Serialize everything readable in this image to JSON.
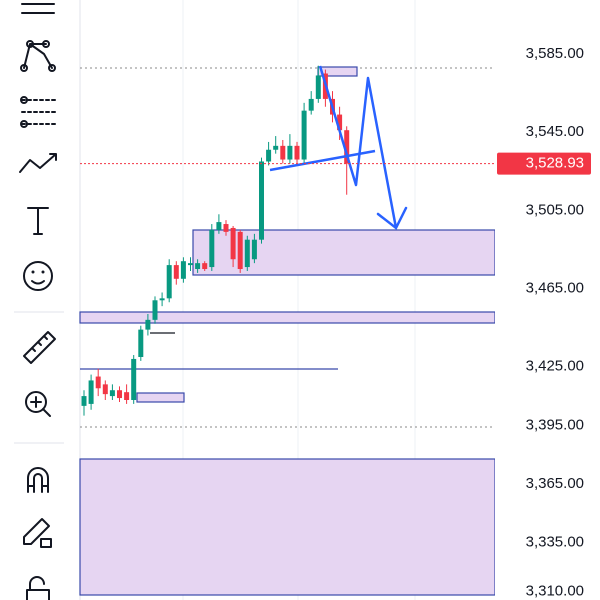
{
  "chart_data": {
    "type": "candlestick",
    "open": [
      3405,
      3406,
      3420,
      3416,
      3410,
      3413,
      3412,
      3408,
      3430,
      3444,
      3449,
      3459,
      3460,
      3477,
      3470,
      3477,
      3475,
      3478,
      3476,
      3495,
      3498,
      3496,
      3494,
      3476,
      3480,
      3490,
      3530,
      3536,
      3538,
      3531,
      3538,
      3531,
      3556,
      3562,
      3575,
      3562,
      3554,
      3546
    ],
    "high": [
      3413,
      3421,
      3424,
      3418,
      3416,
      3415,
      3416,
      3431,
      3446,
      3452,
      3461,
      3463,
      3480,
      3479,
      3481,
      3481,
      3480,
      3479,
      3498,
      3503,
      3500,
      3497,
      3495,
      3492,
      3493,
      3532,
      3540,
      3543,
      3541,
      3544,
      3540,
      3560,
      3566,
      3579,
      3577,
      3566,
      3558,
      3548
    ],
    "low": [
      3400,
      3403,
      3410,
      3408,
      3408,
      3407,
      3406,
      3406,
      3428,
      3441,
      3447,
      3456,
      3458,
      3467,
      3468,
      3474,
      3473,
      3474,
      3474,
      3493,
      3492,
      3476,
      3473,
      3474,
      3478,
      3488,
      3528,
      3534,
      3529,
      3529,
      3529,
      3529,
      3554,
      3560,
      3558,
      3550,
      3541,
      3513
    ],
    "close": [
      3410,
      3418,
      3414,
      3411,
      3413,
      3409,
      3408,
      3429,
      3444,
      3449,
      3459,
      3460,
      3477,
      3470,
      3479,
      3478,
      3478,
      3475,
      3495,
      3499,
      3494,
      3480,
      3475,
      3490,
      3490,
      3530,
      3536,
      3538,
      3531,
      3538,
      3531,
      3556,
      3562,
      3574,
      3562,
      3554,
      3546,
      3528.93
    ],
    "up_color": "#089981",
    "down_color": "#f23645",
    "ylim": [
      3305.7,
      3612.6
    ],
    "yticks": [
      {
        "value": 3585,
        "label": "3,585.00"
      },
      {
        "value": 3545,
        "label": "3,545.00"
      },
      {
        "value": 3505,
        "label": "3,505.00"
      },
      {
        "value": 3465,
        "label": "3,465.00"
      },
      {
        "value": 3425,
        "label": "3,425.00"
      },
      {
        "value": 3395,
        "label": "3,395.00"
      },
      {
        "value": 3365,
        "label": "3,365.00"
      },
      {
        "value": 3335,
        "label": "3,335.00"
      },
      {
        "value": 3310,
        "label": "3,310.00"
      }
    ],
    "last_price": {
      "value": 3528.93,
      "label": "3,528.93"
    }
  }
}
